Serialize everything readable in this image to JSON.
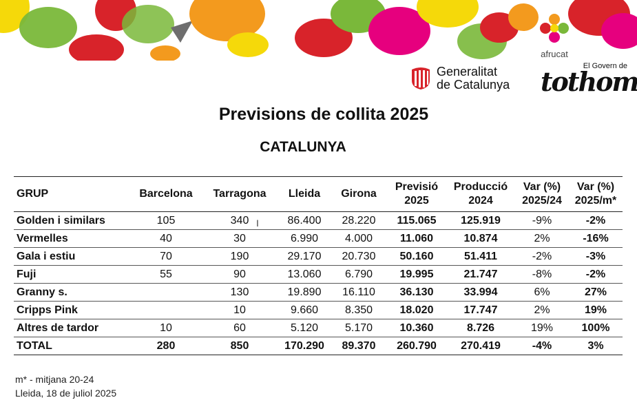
{
  "logos": {
    "afrucat": "afrucat",
    "generalitat_line1": "Generalitat",
    "generalitat_line2": "de Catalunya",
    "govern_small": "El Govern de",
    "govern_big": "tothom"
  },
  "title": "Previsions de collita 2025",
  "subtitle": "CATALUNYA",
  "table": {
    "headers": [
      [
        "GRUP",
        ""
      ],
      [
        "Barcelona",
        ""
      ],
      [
        "Tarragona",
        ""
      ],
      [
        "Lleida",
        ""
      ],
      [
        "Girona",
        ""
      ],
      [
        "Previsió",
        "2025"
      ],
      [
        "Producció",
        "2024"
      ],
      [
        "Var (%)",
        "2025/24"
      ],
      [
        "Var (%)",
        "2025/m*"
      ]
    ],
    "rows": [
      [
        "Golden i similars",
        "105",
        "340",
        "86.400",
        "28.220",
        "115.065",
        "125.919",
        "-9%",
        "-2%"
      ],
      [
        "Vermelles",
        "40",
        "30",
        "6.990",
        "4.000",
        "11.060",
        "10.874",
        "2%",
        "-16%"
      ],
      [
        "Gala i estiu",
        "70",
        "190",
        "29.170",
        "20.730",
        "50.160",
        "51.411",
        "-2%",
        "-3%"
      ],
      [
        "Fuji",
        "55",
        "90",
        "13.060",
        "6.790",
        "19.995",
        "21.747",
        "-8%",
        "-2%"
      ],
      [
        "Granny s.",
        "",
        "130",
        "19.890",
        "16.110",
        "36.130",
        "33.994",
        "6%",
        "27%"
      ],
      [
        "Cripps Pink",
        "",
        "10",
        "9.660",
        "8.350",
        "18.020",
        "17.747",
        "2%",
        "19%"
      ],
      [
        "Altres de tardor",
        "10",
        "60",
        "5.120",
        "5.170",
        "10.360",
        "8.726",
        "19%",
        "100%"
      ],
      [
        "TOTAL",
        "280",
        "850",
        "170.290",
        "89.370",
        "260.790",
        "270.419",
        "-4%",
        "3%"
      ]
    ]
  },
  "notes": {
    "line1": "m* - mitjana 20-24",
    "line2": "Lleida, 18 de juliol 2025"
  },
  "colors": {
    "red": "#d8232a",
    "orange": "#f39a1e",
    "yellow": "#f5d90a",
    "green": "#7ab83a",
    "grey": "#8a8a8a",
    "pink": "#e6007e"
  }
}
